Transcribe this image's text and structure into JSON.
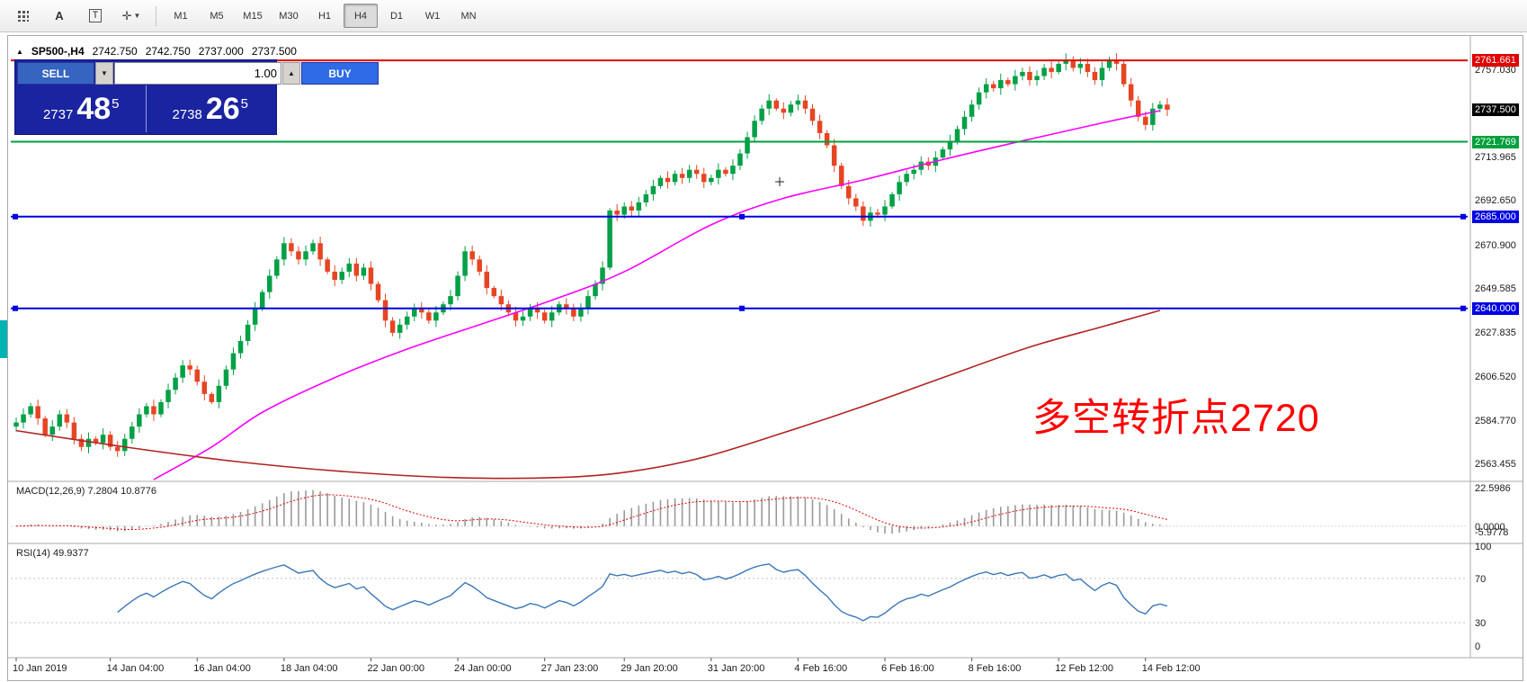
{
  "toolbar": {
    "tool_a_label": "A",
    "tool_t_label": "T",
    "timeframes": [
      "M1",
      "M5",
      "M15",
      "M30",
      "H1",
      "H4",
      "D1",
      "W1",
      "MN"
    ],
    "active_timeframe": "H4"
  },
  "chart_header": {
    "collapse_glyph": "▲",
    "symbol": "SP500-,H4",
    "open": "2742.750",
    "high": "2742.750",
    "low": "2737.000",
    "close": "2737.500"
  },
  "trade_panel": {
    "sell_label": "SELL",
    "buy_label": "BUY",
    "volume": "1.00",
    "spin_down": "▼",
    "spin_up": "▲",
    "sell_price_small": "2737",
    "sell_price_big": "48",
    "sell_price_sup": "5",
    "buy_price_small": "2738",
    "buy_price_big": "26",
    "buy_price_sup": "5"
  },
  "annotation": {
    "text": "多空转折点2720",
    "color": "#ff0000"
  },
  "colors": {
    "candle_up": "#00A046",
    "candle_down": "#E64524",
    "ma_fast": "#FF00FF",
    "ma_slow": "#B22222",
    "line_red": "#E00000",
    "line_green": "#00A03C",
    "line_blue": "#0000E0",
    "current_price_tag": "#000000",
    "rsi_line": "#3A77B8",
    "macd_hist": "#9A9A9A",
    "macd_signal": "#E00000"
  },
  "price_scale": {
    "plain_labels": [
      {
        "text": "2757.030",
        "price": 2757.03
      },
      {
        "text": "2713.965",
        "price": 2713.965
      },
      {
        "text": "2692.650",
        "price": 2692.65
      },
      {
        "text": "2670.900",
        "price": 2670.9
      },
      {
        "text": "2649.585",
        "price": 2649.585
      },
      {
        "text": "2627.835",
        "price": 2627.835
      },
      {
        "text": "2606.520",
        "price": 2606.52
      },
      {
        "text": "2584.770",
        "price": 2584.77
      },
      {
        "text": "2563.455",
        "price": 2563.455
      }
    ],
    "tagged_labels": [
      {
        "text": "2761.661",
        "price": 2761.661,
        "bg": "#E00000"
      },
      {
        "text": "2737.500",
        "price": 2737.5,
        "bg": "#000000"
      },
      {
        "text": "2721.769",
        "price": 2721.769,
        "bg": "#00A03C"
      },
      {
        "text": "2685.000",
        "price": 2685.0,
        "bg": "#0000E0"
      },
      {
        "text": "2640.000",
        "price": 2640.0,
        "bg": "#0000E0"
      }
    ]
  },
  "chart_data": {
    "type": "candlestick",
    "symbol": "SP500-",
    "timeframe": "H4",
    "ylim": [
      2556,
      2771
    ],
    "closes": [
      2584,
      2588,
      2592,
      2586,
      2578,
      2582,
      2588,
      2584,
      2576,
      2572,
      2576,
      2574,
      2578,
      2572,
      2570,
      2576,
      2582,
      2588,
      2592,
      2588,
      2594,
      2600,
      2606,
      2612,
      2610,
      2604,
      2598,
      2594,
      2602,
      2610,
      2618,
      2624,
      2632,
      2640,
      2648,
      2656,
      2664,
      2672,
      2668,
      2664,
      2668,
      2672,
      2664,
      2658,
      2654,
      2658,
      2662,
      2656,
      2660,
      2652,
      2644,
      2634,
      2628,
      2632,
      2636,
      2640,
      2638,
      2634,
      2638,
      2642,
      2646,
      2656,
      2668,
      2664,
      2658,
      2650,
      2646,
      2642,
      2638,
      2634,
      2636,
      2640,
      2638,
      2634,
      2638,
      2642,
      2640,
      2636,
      2640,
      2646,
      2652,
      2660,
      2688,
      2686,
      2690,
      2688,
      2692,
      2696,
      2700,
      2704,
      2702,
      2706,
      2704,
      2708,
      2706,
      2702,
      2704,
      2708,
      2706,
      2710,
      2716,
      2724,
      2732,
      2738,
      2742,
      2738,
      2736,
      2740,
      2742,
      2738,
      2732,
      2726,
      2720,
      2710,
      2700,
      2694,
      2690,
      2683,
      2687,
      2686,
      2690,
      2696,
      2702,
      2706,
      2708,
      2712,
      2710,
      2714,
      2718,
      2722,
      2728,
      2734,
      2740,
      2746,
      2750,
      2748,
      2752,
      2750,
      2754,
      2756,
      2752,
      2754,
      2758,
      2756,
      2760,
      2762,
      2758,
      2760,
      2756,
      2752,
      2758,
      2762,
      2760,
      2750,
      2742,
      2734,
      2730,
      2738,
      2740,
      2737.5
    ],
    "current_price": 2737.5,
    "hlines": [
      {
        "price": 2761.661,
        "color": "#E00000",
        "handles": false
      },
      {
        "price": 2721.769,
        "color": "#00A03C",
        "handles": false
      },
      {
        "price": 2685.0,
        "color": "#0000E0",
        "handles": true
      },
      {
        "price": 2640.0,
        "color": "#0000E0",
        "handles": true
      }
    ],
    "ma_fast": {
      "color": "#FF00FF",
      "points": [
        [
          19,
          2556
        ],
        [
          27,
          2572
        ],
        [
          34,
          2589
        ],
        [
          44,
          2606
        ],
        [
          54,
          2620
        ],
        [
          64,
          2632
        ],
        [
          74,
          2644
        ],
        [
          84,
          2658
        ],
        [
          96,
          2681
        ],
        [
          106,
          2694
        ],
        [
          117,
          2703
        ],
        [
          128,
          2713
        ],
        [
          140,
          2723
        ],
        [
          150,
          2731
        ],
        [
          158,
          2737
        ]
      ]
    },
    "ma_slow": {
      "color": "#B22222",
      "points": [
        [
          0,
          2580
        ],
        [
          15,
          2572
        ],
        [
          30,
          2565
        ],
        [
          45,
          2560
        ],
        [
          60,
          2557
        ],
        [
          75,
          2557
        ],
        [
          85,
          2560
        ],
        [
          95,
          2567
        ],
        [
          106,
          2579
        ],
        [
          117,
          2592
        ],
        [
          128,
          2606
        ],
        [
          140,
          2621
        ],
        [
          150,
          2631
        ],
        [
          158,
          2639
        ]
      ]
    },
    "x_ticks": [
      {
        "index": 0,
        "label": "10 Jan 2019"
      },
      {
        "index": 13,
        "label": "14 Jan 04:00"
      },
      {
        "index": 25,
        "label": "16 Jan 04:00"
      },
      {
        "index": 37,
        "label": "18 Jan 04:00"
      },
      {
        "index": 49,
        "label": "22 Jan 00:00"
      },
      {
        "index": 61,
        "label": "24 Jan 00:00"
      },
      {
        "index": 73,
        "label": "27 Jan 23:00"
      },
      {
        "index": 84,
        "label": "29 Jan 20:00"
      },
      {
        "index": 96,
        "label": "31 Jan 20:00"
      },
      {
        "index": 108,
        "label": "4 Feb 16:00"
      },
      {
        "index": 120,
        "label": "6 Feb 16:00"
      },
      {
        "index": 132,
        "label": "8 Feb 16:00"
      },
      {
        "index": 144,
        "label": "12 Feb 12:00"
      },
      {
        "index": 156,
        "label": "14 Feb 12:00"
      }
    ],
    "macd": {
      "label": "MACD(12,26,9) 7.2804 10.8776",
      "params": [
        12,
        26,
        9
      ],
      "value": 7.2804,
      "signal_value": 10.8776,
      "axis_labels": [
        {
          "text": "22.5986",
          "value": 22.5986
        },
        {
          "text": "0.0000",
          "value": 0.0
        },
        {
          "text": "-5.9778",
          "value": -5.9778
        }
      ],
      "range": [
        -7.5,
        23.5
      ]
    },
    "rsi": {
      "label": "RSI(14) 49.9377",
      "period": 14,
      "value": 49.9377,
      "levels": [
        70,
        30
      ],
      "axis_labels": [
        {
          "text": "100",
          "value": 100
        },
        {
          "text": "70",
          "value": 70
        },
        {
          "text": "30",
          "value": 30
        },
        {
          "text": "0",
          "value": 0
        }
      ]
    }
  }
}
